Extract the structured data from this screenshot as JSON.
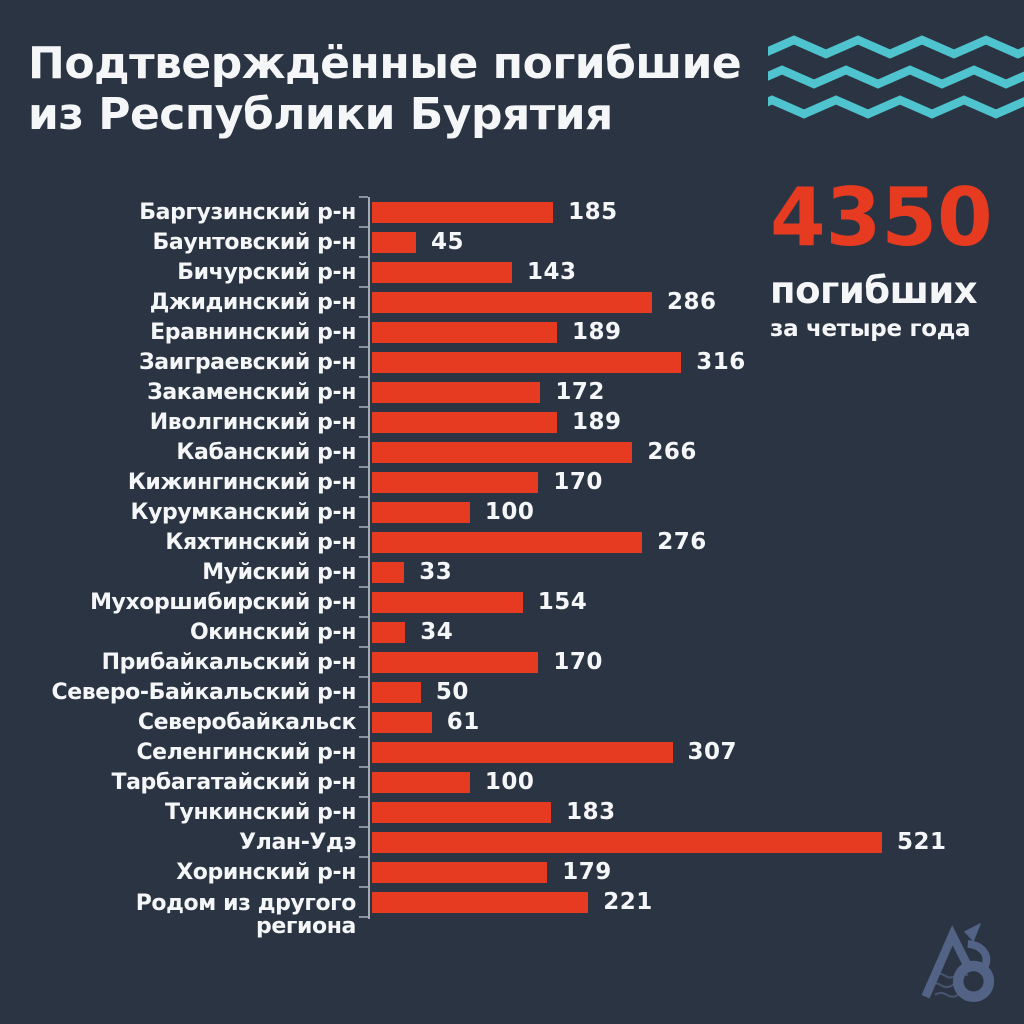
{
  "title": {
    "line1": "Подтверждённые погибшие",
    "line2": "из Республики Бурятия"
  },
  "summary": {
    "total": "4350",
    "label": "погибших",
    "period": "за четыре года"
  },
  "chart_data": {
    "type": "bar",
    "orientation": "horizontal",
    "title": "Подтверждённые погибшие из Республики Бурятия",
    "categories": [
      "Баргузинский р-н",
      "Баунтовский р-н",
      "Бичурский р-н",
      "Джидинский р-н",
      "Еравнинский р-н",
      "Заиграевский р-н",
      "Закаменский р-н",
      "Иволгинский р-н",
      "Кабанский р-н",
      "Кижингинский р-н",
      "Курумканский р-н",
      "Кяхтинский р-н",
      "Муйский р-н",
      "Мухоршибирский р-н",
      "Окинский р-н",
      "Прибайкальский р-н",
      "Северо-Байкальский р-н",
      "Северобайкальск",
      "Селенгинский р-н",
      "Тарбагатайский р-н",
      "Тункинский р-н",
      "Улан-Удэ",
      "Хоринский р-н",
      "Родом из другого\nрегиона"
    ],
    "values": [
      185,
      45,
      143,
      286,
      189,
      316,
      172,
      189,
      266,
      170,
      100,
      276,
      33,
      154,
      34,
      170,
      50,
      61,
      307,
      100,
      183,
      521,
      179,
      221
    ],
    "value_labels_shown": true,
    "legend": false,
    "axis": {
      "gridlines": false,
      "tick_labels": false,
      "scale_max": 521
    },
    "total": 4350
  },
  "colors": {
    "background": "#2b3442",
    "bar": "#e63b21",
    "accent_red": "#e63b21",
    "wave_teal": "#4fc4ce",
    "text": "#f5f6f8",
    "axis": "#b9bfc9",
    "logo": "#5b6c92"
  },
  "icons": {
    "waves": "zigzag-waves-icon",
    "logo": "baikal-people-logo"
  }
}
